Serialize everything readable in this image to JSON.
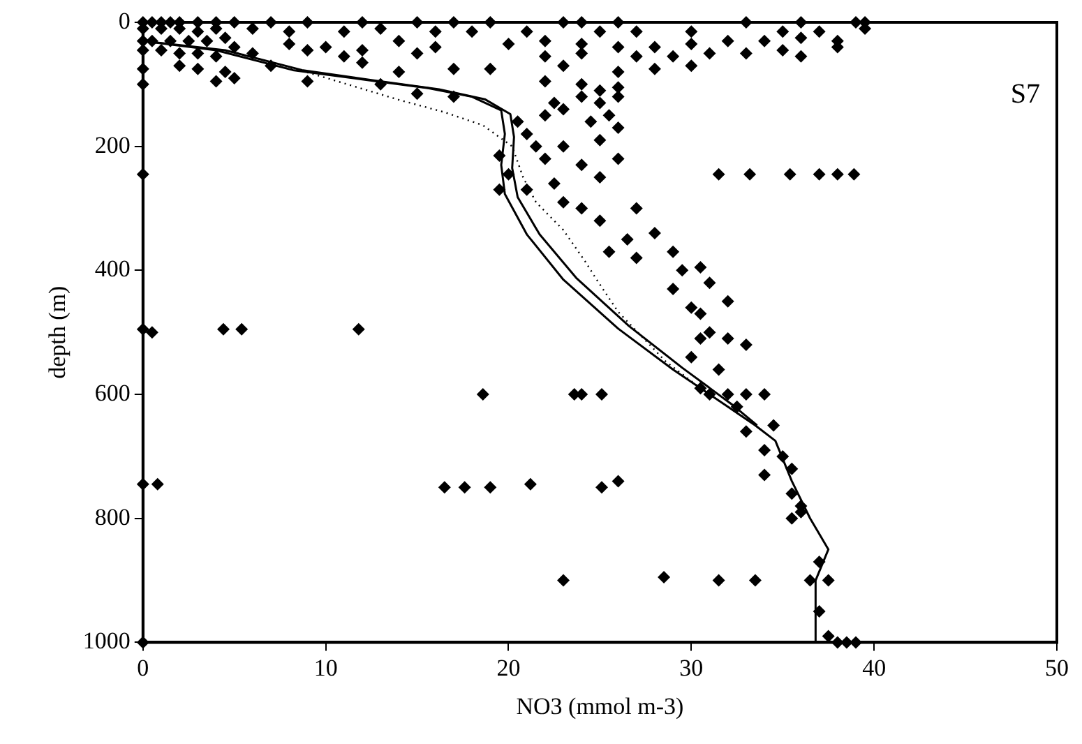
{
  "chart_data": {
    "type": "scatter",
    "xlabel": "NO3 (mmol m-3)",
    "ylabel": "depth (m)",
    "annotations": [
      "S7"
    ],
    "xlim": [
      0,
      50
    ],
    "xticks": [
      0,
      10,
      20,
      30,
      40,
      50
    ],
    "ylim": [
      1000,
      0
    ],
    "yticks": [
      0,
      200,
      400,
      600,
      800,
      1000
    ],
    "grid": false,
    "legend": false,
    "series": [
      {
        "marker": "diamond",
        "color": "#000000",
        "x": [
          0,
          0.5,
          1,
          1.5,
          2,
          3,
          4,
          5,
          7,
          9,
          12,
          15,
          17,
          19,
          23,
          24,
          26,
          33,
          36,
          39,
          39.5,
          0,
          1,
          2,
          3,
          4,
          6,
          8,
          11,
          13,
          16,
          18,
          21,
          25,
          27,
          30,
          35,
          37,
          39.5,
          0,
          0.5,
          1.5,
          2.5,
          3.5,
          4.5,
          5,
          8,
          10,
          12,
          14,
          16,
          20,
          22,
          24,
          26,
          28,
          30,
          32,
          34,
          36,
          38,
          0,
          1,
          2,
          3,
          4,
          6,
          9,
          11,
          15,
          22,
          24,
          27,
          29,
          31,
          33,
          35,
          38,
          0,
          2,
          3,
          4.5,
          7,
          12,
          14,
          17,
          19,
          23,
          26,
          28,
          30,
          36,
          0,
          4,
          5,
          9,
          13,
          15,
          17,
          22,
          24,
          25,
          26,
          20.5,
          21,
          22,
          22.5,
          23,
          24,
          24.5,
          25,
          25.5,
          26,
          26,
          25,
          23,
          21.5,
          22,
          24,
          26,
          25,
          22.5,
          21,
          23,
          24,
          19.5,
          20,
          19.5,
          25,
          27,
          26.5,
          28,
          25.5,
          27,
          29,
          29.5,
          30.5,
          31,
          29,
          30,
          30.5,
          32,
          31,
          32,
          33,
          30.5,
          30,
          31.5,
          30.5,
          31,
          32,
          33,
          34,
          32.5,
          33,
          34.5,
          34,
          35,
          35.5,
          34,
          35.5,
          36,
          35.5,
          36,
          37,
          37.5,
          36.5,
          33.5,
          31.5,
          28.5,
          23,
          37,
          37.5,
          38,
          38.5,
          39,
          0,
          31.5,
          33.2,
          35.4,
          37,
          38,
          38.9,
          0,
          0,
          0.5,
          4.4,
          5.4,
          11.8,
          18.6,
          23.6,
          24,
          25.1,
          0,
          0.8,
          16.5,
          17.6,
          19,
          21.2,
          25.1,
          26
        ],
        "values": [
          0,
          0,
          0,
          0,
          0,
          0,
          0,
          0,
          0,
          0,
          0,
          0,
          0,
          0,
          0,
          0,
          0,
          0,
          0,
          0,
          0,
          10,
          10,
          10,
          15,
          10,
          10,
          15,
          15,
          10,
          15,
          15,
          15,
          15,
          15,
          15,
          15,
          15,
          10,
          30,
          30,
          30,
          30,
          30,
          25,
          40,
          35,
          40,
          45,
          30,
          40,
          35,
          30,
          35,
          40,
          40,
          35,
          30,
          30,
          25,
          30,
          45,
          45,
          50,
          50,
          55,
          50,
          45,
          55,
          50,
          55,
          50,
          55,
          55,
          50,
          50,
          45,
          40,
          75,
          70,
          75,
          80,
          70,
          65,
          80,
          75,
          75,
          70,
          80,
          75,
          70,
          55,
          100,
          95,
          90,
          95,
          100,
          115,
          120,
          95,
          100,
          110,
          105,
          160,
          180,
          150,
          130,
          140,
          120,
          160,
          130,
          150,
          120,
          170,
          190,
          200,
          200,
          220,
          230,
          220,
          250,
          260,
          270,
          290,
          300,
          215,
          245,
          270,
          320,
          300,
          350,
          340,
          370,
          380,
          370,
          400,
          395,
          420,
          430,
          460,
          470,
          450,
          500,
          510,
          520,
          510,
          540,
          560,
          590,
          600,
          600,
          600,
          600,
          620,
          660,
          650,
          690,
          700,
          720,
          730,
          760,
          780,
          800,
          790,
          870,
          900,
          900,
          900,
          900,
          895,
          900,
          950,
          990,
          1000,
          1000,
          1000,
          1000,
          245,
          245,
          245,
          245,
          245,
          245,
          245,
          495,
          500,
          495,
          495,
          495,
          600,
          600,
          600,
          600,
          745,
          745,
          750,
          750,
          750,
          745,
          750,
          740
        ]
      },
      {
        "type": "line",
        "marker": "none",
        "line_style": "solid",
        "color": "#000000",
        "x": [
          0,
          4,
          8.2,
          12,
          15.6,
          18,
          19.6,
          19.8,
          19.6,
          19.8,
          21,
          23,
          26,
          29,
          32,
          33.5,
          34.6,
          35.5,
          36.5,
          37.5,
          36.8,
          36.8
        ],
        "values": [
          30,
          45,
          77,
          92,
          106,
          120,
          142,
          180,
          230,
          277,
          342,
          415,
          494,
          560,
          620,
          650,
          675,
          740,
          800,
          850,
          900,
          1000
        ]
      },
      {
        "type": "line",
        "marker": "none",
        "line_style": "solid",
        "color": "#000000",
        "x": [
          0,
          4.5,
          8.7,
          12.5,
          16.2,
          18.7,
          20.1,
          20.3,
          20.2,
          20.5,
          21.7,
          23.7,
          26.6,
          29.5,
          32.3,
          33.6
        ],
        "values": [
          30,
          45,
          77,
          93,
          108,
          124,
          148,
          185,
          235,
          282,
          342,
          412,
          490,
          557,
          618,
          650
        ]
      },
      {
        "type": "line",
        "marker": "none",
        "line_style": "dotted",
        "color": "#000000",
        "x": [
          0,
          5,
          9.5,
          14,
          16.5,
          18.6,
          20.2,
          20.8,
          21.5,
          23,
          24.2,
          24.8,
          26,
          28.6,
          30.5,
          32.5,
          33.6
        ],
        "values": [
          30,
          48,
          85,
          125,
          145,
          166,
          200,
          250,
          290,
          335,
          386,
          414,
          467,
          547,
          590,
          630,
          650
        ]
      }
    ]
  }
}
